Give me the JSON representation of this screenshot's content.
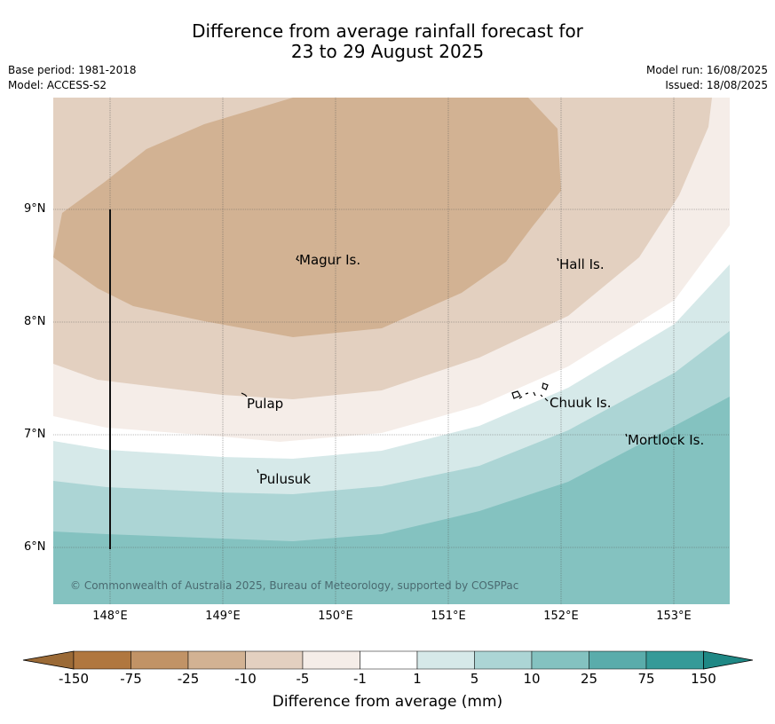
{
  "title_line1": "Difference from average rainfall forecast for",
  "title_line2": "23 to 29 August 2025",
  "base_period": "Base period: 1981-2018",
  "model": "Model: ACCESS-S2",
  "model_run": "Model run: 16/08/2025",
  "issued": "Issued: 18/08/2025",
  "lat_labels": [
    "9°N",
    "8°N",
    "7°N",
    "6°N"
  ],
  "lon_labels": [
    "148°E",
    "149°E",
    "150°E",
    "151°E",
    "152°E",
    "153°E"
  ],
  "places": {
    "magur": "Magur Is.",
    "hall": "Hall Is.",
    "pulap": "Pulap",
    "chuuk": "Chuuk Is.",
    "mortlock": "Mortlock Is.",
    "pulusuk": "Pulusuk"
  },
  "copyright": "© Commonwealth of Australia 2025, Bureau of Meteorology, supported by COSPPac",
  "colorbar": {
    "title": "Difference from average (mm)",
    "ticks": [
      "-150",
      "-75",
      "-25",
      "-10",
      "-5",
      "-1",
      "1",
      "5",
      "10",
      "25",
      "75",
      "150"
    ],
    "colors": [
      "#9b6a36",
      "#b0773f",
      "#c19366",
      "#d2b293",
      "#e3d0c0",
      "#f5ede8",
      "#ffffff",
      "#d6e9e9",
      "#acd5d5",
      "#84c2c0",
      "#5aacab",
      "#359a98",
      "#1f8885"
    ]
  }
}
